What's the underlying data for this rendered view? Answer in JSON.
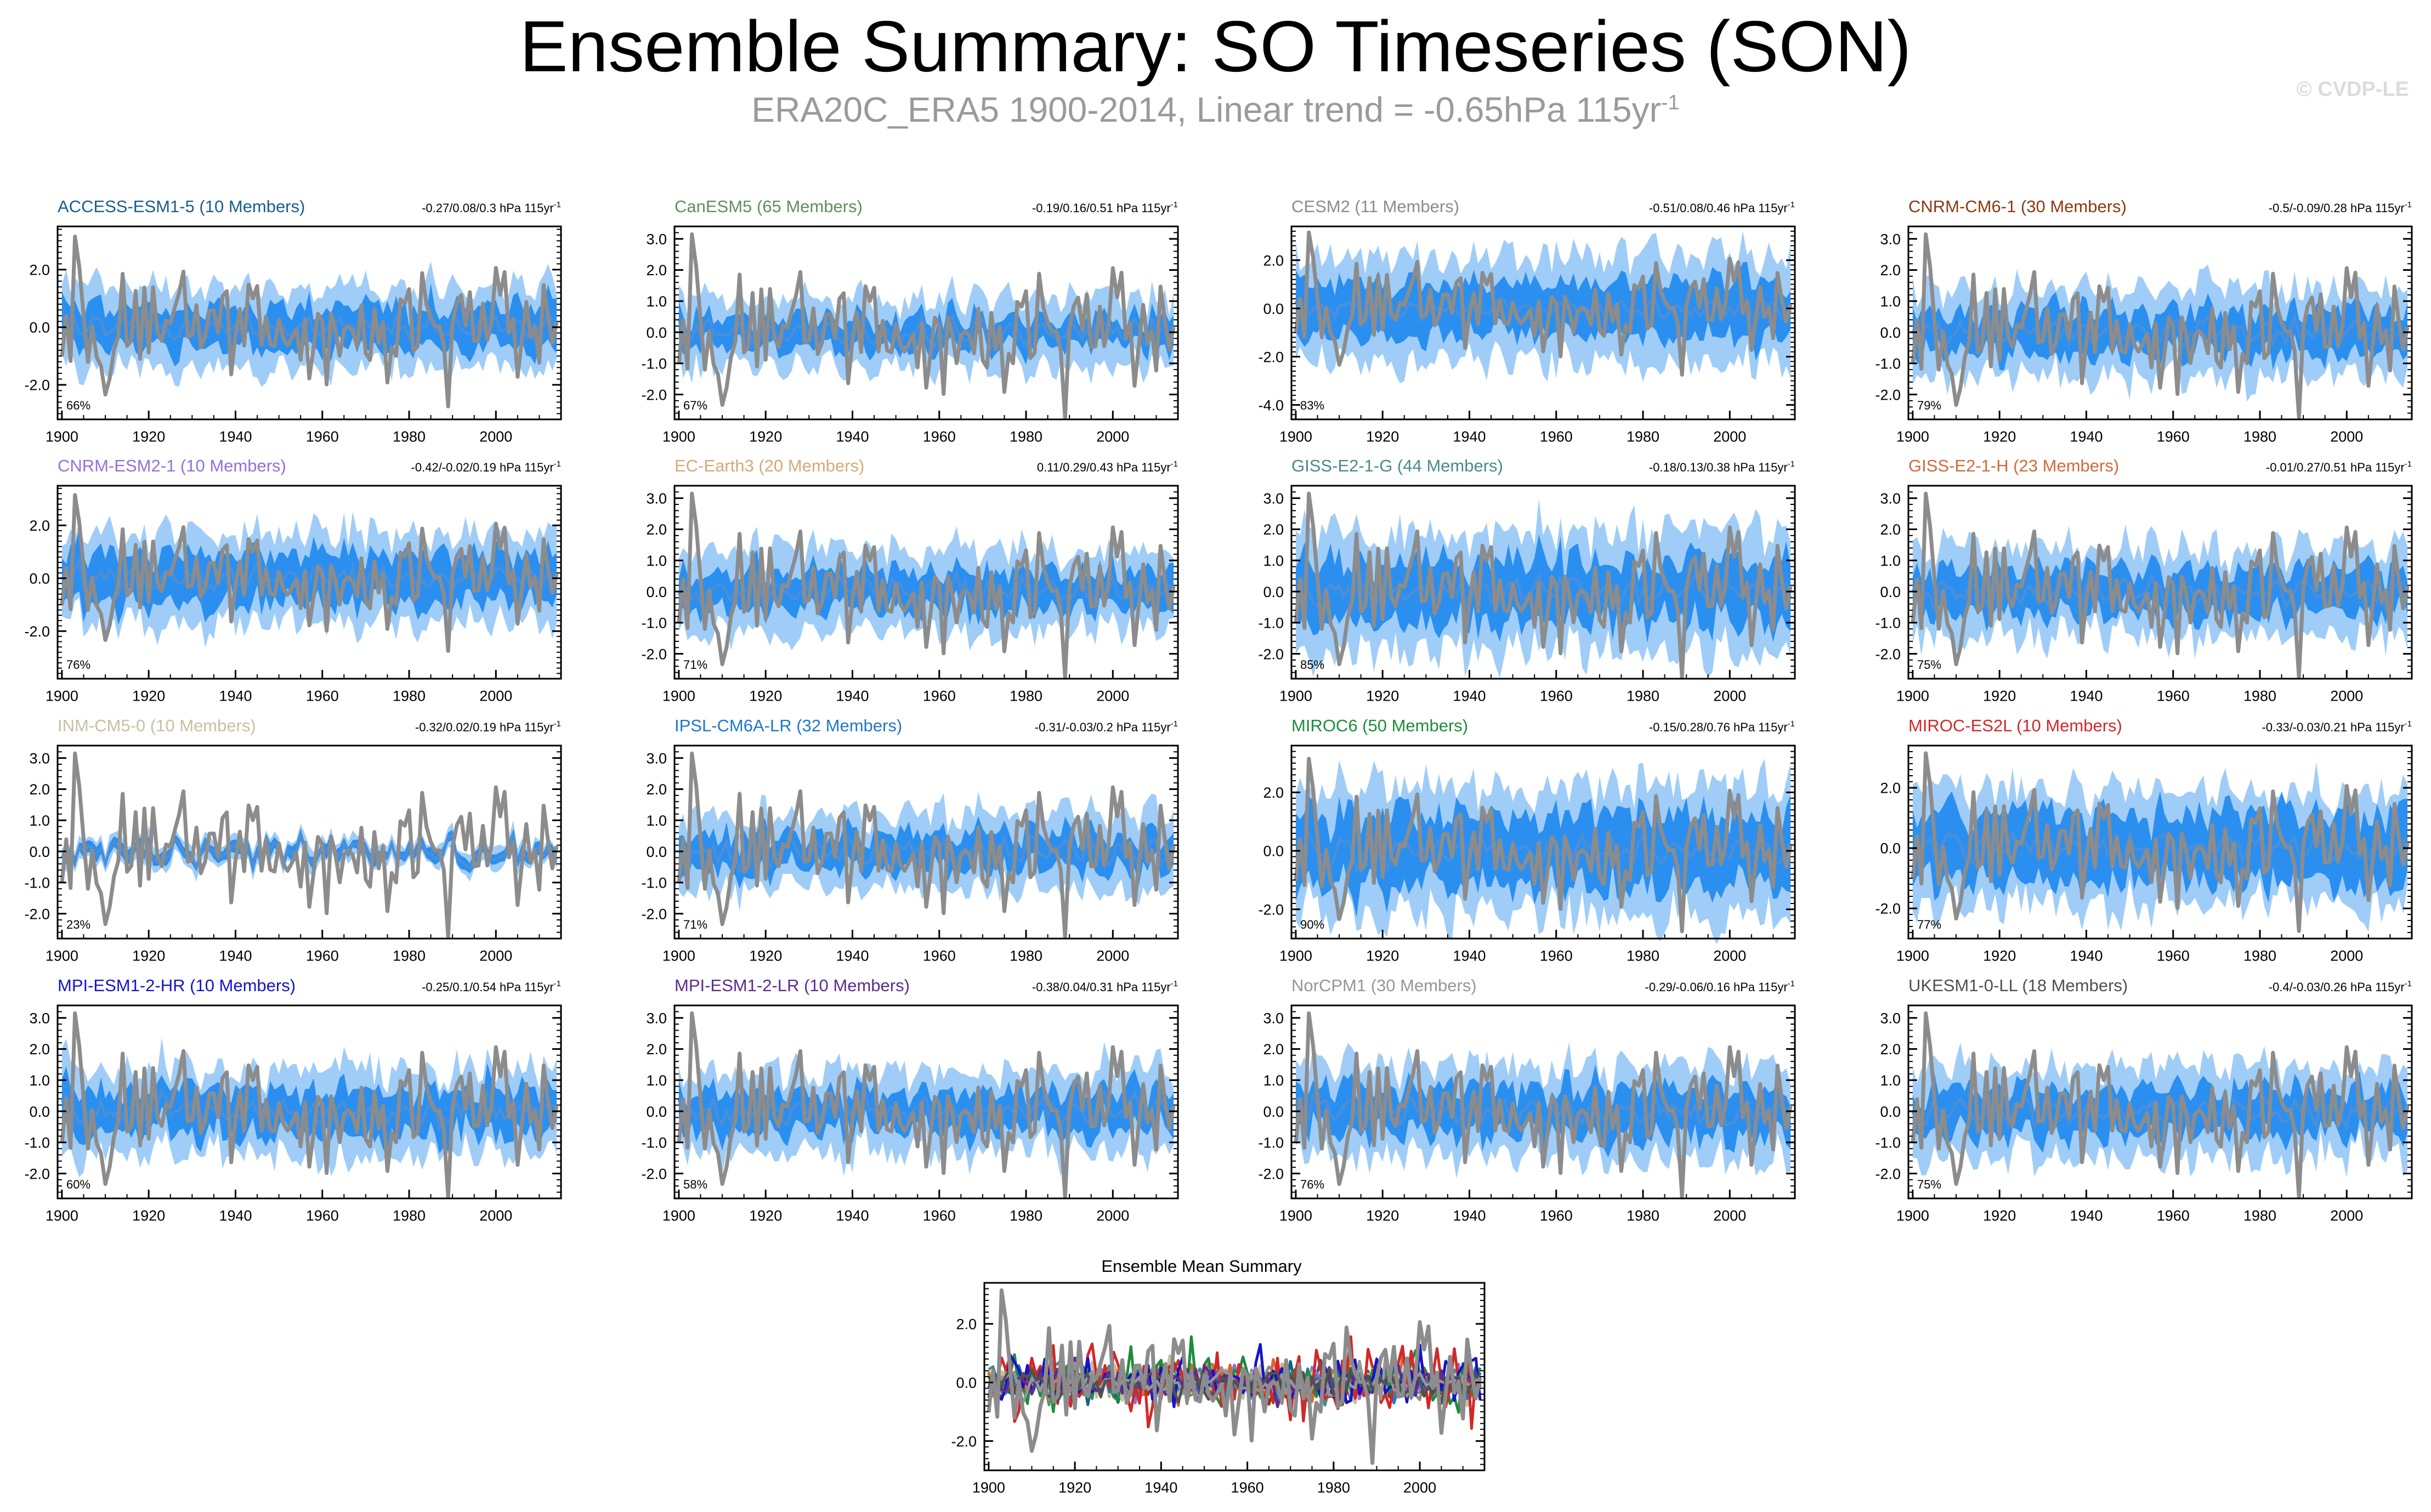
{
  "page": {
    "title": "Ensemble Summary: SO Timeseries (SON)",
    "subtitle_main": "ERA20C_ERA5 1900-2014, Linear trend = -0.65hPa 115yr",
    "subtitle_exp": "-1",
    "credit": "© CVDP-LE"
  },
  "colors": {
    "obs": "#8c8c8c",
    "band_outer": "#9fcdf7",
    "band_inner": "#2b8ff0",
    "ens_mean": "#4a8fd8",
    "frame": "#000000",
    "tick_text": "#000000"
  },
  "chart_data": [
    {
      "type": "line",
      "title": "ACCESS-ESM1-5 (10 Members)",
      "title_color": "#1a5e8a",
      "trend_label": "-0.27/0.08/0.3 hPa 115yr",
      "trend_exp": "-1",
      "pct_label": "66%",
      "ylim": [
        -3.2,
        3.5
      ],
      "yticks": [
        -2.0,
        0.0,
        2.0
      ],
      "ytick_labels": [
        "-2.0",
        "0.0",
        "2.0"
      ],
      "xlim": [
        1899,
        2015
      ],
      "xticks": [
        1900,
        1920,
        1940,
        1960,
        1980,
        2000
      ],
      "xtick_labels": [
        "1900",
        "1920",
        "1940",
        "1960",
        "1980",
        "2000"
      ],
      "spread_outer": 1.4,
      "spread_inner": 0.7,
      "seed": 1
    },
    {
      "type": "line",
      "title": "CanESM5 (65 Members)",
      "title_color": "#5f8f5f",
      "trend_label": "-0.19/0.16/0.51 hPa 115yr",
      "trend_exp": "-1",
      "pct_label": "67%",
      "ylim": [
        -2.8,
        3.4
      ],
      "yticks": [
        -2.0,
        -1.0,
        0.0,
        1.0,
        2.0,
        3.0
      ],
      "ytick_labels": [
        "-2.0",
        "-1.0",
        "0.0",
        "1.0",
        "2.0",
        "3.0"
      ],
      "xlim": [
        1899,
        2015
      ],
      "xticks": [
        1900,
        1920,
        1940,
        1960,
        1980,
        2000
      ],
      "xtick_labels": [
        "1900",
        "1920",
        "1940",
        "1960",
        "1980",
        "2000"
      ],
      "spread_outer": 1.1,
      "spread_inner": 0.45,
      "seed": 2
    },
    {
      "type": "line",
      "title": "CESM2 (11 Members)",
      "title_color": "#8c8c8c",
      "trend_label": "-0.51/0.08/0.46 hPa 115yr",
      "trend_exp": "-1",
      "pct_label": "83%",
      "ylim": [
        -4.6,
        3.4
      ],
      "yticks": [
        -4.0,
        -2.0,
        0.0,
        2.0
      ],
      "ytick_labels": [
        "-4.0",
        "-2.0",
        "0.0",
        "2.0"
      ],
      "xlim": [
        1899,
        2015
      ],
      "xticks": [
        1900,
        1920,
        1940,
        1960,
        1980,
        2000
      ],
      "xtick_labels": [
        "1900",
        "1920",
        "1940",
        "1960",
        "1980",
        "2000"
      ],
      "spread_outer": 2.2,
      "spread_inner": 1.1,
      "seed": 3
    },
    {
      "type": "line",
      "title": "CNRM-CM6-1 (30 Members)",
      "title_color": "#8a3a12",
      "trend_label": "-0.5/-0.09/0.28 hPa 115yr",
      "trend_exp": "-1",
      "pct_label": "79%",
      "ylim": [
        -2.8,
        3.4
      ],
      "yticks": [
        -2.0,
        -1.0,
        0.0,
        1.0,
        2.0,
        3.0
      ],
      "ytick_labels": [
        "-2.0",
        "-1.0",
        "0.0",
        "1.0",
        "2.0",
        "3.0"
      ],
      "xlim": [
        1899,
        2015
      ],
      "xticks": [
        1900,
        1920,
        1940,
        1960,
        1980,
        2000
      ],
      "xtick_labels": [
        "1900",
        "1920",
        "1940",
        "1960",
        "1980",
        "2000"
      ],
      "spread_outer": 1.4,
      "spread_inner": 0.7,
      "seed": 4
    },
    {
      "type": "line",
      "title": "CNRM-ESM2-1 (10 Members)",
      "title_color": "#9370db",
      "trend_label": "-0.42/-0.02/0.19 hPa 115yr",
      "trend_exp": "-1",
      "pct_label": "76%",
      "ylim": [
        -3.8,
        3.5
      ],
      "yticks": [
        -2.0,
        0.0,
        2.0
      ],
      "ytick_labels": [
        "-2.0",
        "0.0",
        "2.0"
      ],
      "xlim": [
        1899,
        2015
      ],
      "xticks": [
        1900,
        1920,
        1940,
        1960,
        1980,
        2000
      ],
      "xtick_labels": [
        "1900",
        "1920",
        "1940",
        "1960",
        "1980",
        "2000"
      ],
      "spread_outer": 1.7,
      "spread_inner": 0.9,
      "seed": 5
    },
    {
      "type": "line",
      "title": "EC-Earth3 (20 Members)",
      "title_color": "#d2aa78",
      "trend_label": "0.11/0.29/0.43 hPa 115yr",
      "trend_exp": "-1",
      "pct_label": "71%",
      "ylim": [
        -2.8,
        3.4
      ],
      "yticks": [
        -2.0,
        -1.0,
        0.0,
        1.0,
        2.0,
        3.0
      ],
      "ytick_labels": [
        "-2.0",
        "-1.0",
        "0.0",
        "1.0",
        "2.0",
        "3.0"
      ],
      "xlim": [
        1899,
        2015
      ],
      "xticks": [
        1900,
        1920,
        1940,
        1960,
        1980,
        2000
      ],
      "xtick_labels": [
        "1900",
        "1920",
        "1940",
        "1960",
        "1980",
        "2000"
      ],
      "spread_outer": 1.3,
      "spread_inner": 0.6,
      "seed": 6
    },
    {
      "type": "line",
      "title": "GISS-E2-1-G (44 Members)",
      "title_color": "#4a8a8a",
      "trend_label": "-0.18/0.13/0.38 hPa 115yr",
      "trend_exp": "-1",
      "pct_label": "85%",
      "ylim": [
        -2.8,
        3.4
      ],
      "yticks": [
        -2.0,
        -1.0,
        0.0,
        1.0,
        2.0,
        3.0
      ],
      "ytick_labels": [
        "-2.0",
        "-1.0",
        "0.0",
        "1.0",
        "2.0",
        "3.0"
      ],
      "xlim": [
        1899,
        2015
      ],
      "xticks": [
        1900,
        1920,
        1940,
        1960,
        1980,
        2000
      ],
      "xtick_labels": [
        "1900",
        "1920",
        "1940",
        "1960",
        "1980",
        "2000"
      ],
      "spread_outer": 1.9,
      "spread_inner": 1.0,
      "seed": 7
    },
    {
      "type": "line",
      "title": "GISS-E2-1-H (23 Members)",
      "title_color": "#d2693c",
      "trend_label": "-0.01/0.27/0.51 hPa 115yr",
      "trend_exp": "-1",
      "pct_label": "75%",
      "ylim": [
        -2.8,
        3.4
      ],
      "yticks": [
        -2.0,
        -1.0,
        0.0,
        1.0,
        2.0,
        3.0
      ],
      "ytick_labels": [
        "-2.0",
        "-1.0",
        "0.0",
        "1.0",
        "2.0",
        "3.0"
      ],
      "xlim": [
        1899,
        2015
      ],
      "xticks": [
        1900,
        1920,
        1940,
        1960,
        1980,
        2000
      ],
      "xtick_labels": [
        "1900",
        "1920",
        "1940",
        "1960",
        "1980",
        "2000"
      ],
      "spread_outer": 1.4,
      "spread_inner": 0.7,
      "seed": 8
    },
    {
      "type": "line",
      "title": "INM-CM5-0 (10 Members)",
      "title_color": "#c8c0a0",
      "trend_label": "-0.32/0.02/0.19 hPa 115yr",
      "trend_exp": "-1",
      "pct_label": "23%",
      "ylim": [
        -2.8,
        3.4
      ],
      "yticks": [
        -2.0,
        -1.0,
        0.0,
        1.0,
        2.0,
        3.0
      ],
      "ytick_labels": [
        "-2.0",
        "-1.0",
        "0.0",
        "1.0",
        "2.0",
        "3.0"
      ],
      "xlim": [
        1899,
        2015
      ],
      "xticks": [
        1900,
        1920,
        1940,
        1960,
        1980,
        2000
      ],
      "xtick_labels": [
        "1900",
        "1920",
        "1940",
        "1960",
        "1980",
        "2000"
      ],
      "spread_outer": 0.35,
      "spread_inner": 0.18,
      "seed": 9
    },
    {
      "type": "line",
      "title": "IPSL-CM6A-LR (32 Members)",
      "title_color": "#1e78c8",
      "trend_label": "-0.31/-0.03/0.2 hPa 115yr",
      "trend_exp": "-1",
      "pct_label": "71%",
      "ylim": [
        -2.8,
        3.4
      ],
      "yticks": [
        -2.0,
        -1.0,
        0.0,
        1.0,
        2.0,
        3.0
      ],
      "ytick_labels": [
        "-2.0",
        "-1.0",
        "0.0",
        "1.0",
        "2.0",
        "3.0"
      ],
      "xlim": [
        1899,
        2015
      ],
      "xticks": [
        1900,
        1920,
        1940,
        1960,
        1980,
        2000
      ],
      "xtick_labels": [
        "1900",
        "1920",
        "1940",
        "1960",
        "1980",
        "2000"
      ],
      "spread_outer": 1.2,
      "spread_inner": 0.55,
      "seed": 10
    },
    {
      "type": "line",
      "title": "MIROC6 (50 Members)",
      "title_color": "#1e8c3c",
      "trend_label": "-0.15/0.28/0.76 hPa 115yr",
      "trend_exp": "-1",
      "pct_label": "90%",
      "ylim": [
        -3.0,
        3.6
      ],
      "yticks": [
        -2.0,
        0.0,
        2.0
      ],
      "ytick_labels": [
        "-2.0",
        "0.0",
        "2.0"
      ],
      "xlim": [
        1899,
        2015
      ],
      "xticks": [
        1900,
        1920,
        1940,
        1960,
        1980,
        2000
      ],
      "xtick_labels": [
        "1900",
        "1920",
        "1940",
        "1960",
        "1980",
        "2000"
      ],
      "spread_outer": 2.2,
      "spread_inner": 1.2,
      "seed": 11
    },
    {
      "type": "line",
      "title": "MIROC-ES2L (10 Members)",
      "title_color": "#d22828",
      "trend_label": "-0.33/-0.03/0.21 hPa 115yr",
      "trend_exp": "-1",
      "pct_label": "77%",
      "ylim": [
        -3.0,
        3.4
      ],
      "yticks": [
        -2.0,
        0.0,
        2.0
      ],
      "ytick_labels": [
        "-2.0",
        "0.0",
        "2.0"
      ],
      "xlim": [
        1899,
        2015
      ],
      "xticks": [
        1900,
        1920,
        1940,
        1960,
        1980,
        2000
      ],
      "xtick_labels": [
        "1900",
        "1920",
        "1940",
        "1960",
        "1980",
        "2000"
      ],
      "spread_outer": 1.9,
      "spread_inner": 1.1,
      "seed": 12
    },
    {
      "type": "line",
      "title": "MPI-ESM1-2-HR (10 Members)",
      "title_color": "#1414c8",
      "trend_label": "-0.25/0.1/0.54 hPa 115yr",
      "trend_exp": "-1",
      "pct_label": "60%",
      "ylim": [
        -2.8,
        3.4
      ],
      "yticks": [
        -2.0,
        -1.0,
        0.0,
        1.0,
        2.0,
        3.0
      ],
      "ytick_labels": [
        "-2.0",
        "-1.0",
        "0.0",
        "1.0",
        "2.0",
        "3.0"
      ],
      "xlim": [
        1899,
        2015
      ],
      "xticks": [
        1900,
        1920,
        1940,
        1960,
        1980,
        2000
      ],
      "xtick_labels": [
        "1900",
        "1920",
        "1940",
        "1960",
        "1980",
        "2000"
      ],
      "spread_outer": 1.4,
      "spread_inner": 0.7,
      "seed": 13
    },
    {
      "type": "line",
      "title": "MPI-ESM1-2-LR (10 Members)",
      "title_color": "#5a2d8c",
      "trend_label": "-0.38/0.04/0.31 hPa 115yr",
      "trend_exp": "-1",
      "pct_label": "58%",
      "ylim": [
        -2.8,
        3.4
      ],
      "yticks": [
        -2.0,
        -1.0,
        0.0,
        1.0,
        2.0,
        3.0
      ],
      "ytick_labels": [
        "-2.0",
        "-1.0",
        "0.0",
        "1.0",
        "2.0",
        "3.0"
      ],
      "xlim": [
        1899,
        2015
      ],
      "xticks": [
        1900,
        1920,
        1940,
        1960,
        1980,
        2000
      ],
      "xtick_labels": [
        "1900",
        "1920",
        "1940",
        "1960",
        "1980",
        "2000"
      ],
      "spread_outer": 1.3,
      "spread_inner": 0.6,
      "seed": 14
    },
    {
      "type": "line",
      "title": "NorCPM1 (30 Members)",
      "title_color": "#969696",
      "trend_label": "-0.29/-0.06/0.16 hPa 115yr",
      "trend_exp": "-1",
      "pct_label": "76%",
      "ylim": [
        -2.8,
        3.4
      ],
      "yticks": [
        -2.0,
        -1.0,
        0.0,
        1.0,
        2.0,
        3.0
      ],
      "ytick_labels": [
        "-2.0",
        "-1.0",
        "0.0",
        "1.0",
        "2.0",
        "3.0"
      ],
      "xlim": [
        1899,
        2015
      ],
      "xticks": [
        1900,
        1920,
        1940,
        1960,
        1980,
        2000
      ],
      "xtick_labels": [
        "1900",
        "1920",
        "1940",
        "1960",
        "1980",
        "2000"
      ],
      "spread_outer": 1.5,
      "spread_inner": 0.75,
      "seed": 15
    },
    {
      "type": "line",
      "title": "UKESM1-0-LL (18 Members)",
      "title_color": "#505050",
      "trend_label": "-0.4/-0.03/0.26 hPa 115yr",
      "trend_exp": "-1",
      "pct_label": "75%",
      "ylim": [
        -2.8,
        3.4
      ],
      "yticks": [
        -2.0,
        -1.0,
        0.0,
        1.0,
        2.0,
        3.0
      ],
      "ytick_labels": [
        "-2.0",
        "-1.0",
        "0.0",
        "1.0",
        "2.0",
        "3.0"
      ],
      "xlim": [
        1899,
        2015
      ],
      "xticks": [
        1900,
        1920,
        1940,
        1960,
        1980,
        2000
      ],
      "xtick_labels": [
        "1900",
        "1920",
        "1940",
        "1960",
        "1980",
        "2000"
      ],
      "spread_outer": 1.4,
      "spread_inner": 0.7,
      "seed": 16
    },
    {
      "type": "line",
      "title": "Ensemble Mean Summary",
      "title_color": "#000000",
      "ylim": [
        -3.0,
        3.4
      ],
      "yticks": [
        -2.0,
        0.0,
        2.0
      ],
      "ytick_labels": [
        "-2.0",
        "0.0",
        "2.0"
      ],
      "xlim": [
        1899,
        2015
      ],
      "xticks": [
        1900,
        1920,
        1940,
        1960,
        1980,
        2000
      ],
      "xtick_labels": [
        "1900",
        "1920",
        "1940",
        "1960",
        "1980",
        "2000"
      ],
      "series_colors": [
        "#1a5e8a",
        "#5f8f5f",
        "#8c8c8c",
        "#8a3a12",
        "#9370db",
        "#d2aa78",
        "#4a8a8a",
        "#d2693c",
        "#c8c0a0",
        "#1e78c8",
        "#1e8c3c",
        "#d22828",
        "#1414c8",
        "#5a2d8c",
        "#969696",
        "#505050"
      ],
      "seed": 99
    }
  ]
}
